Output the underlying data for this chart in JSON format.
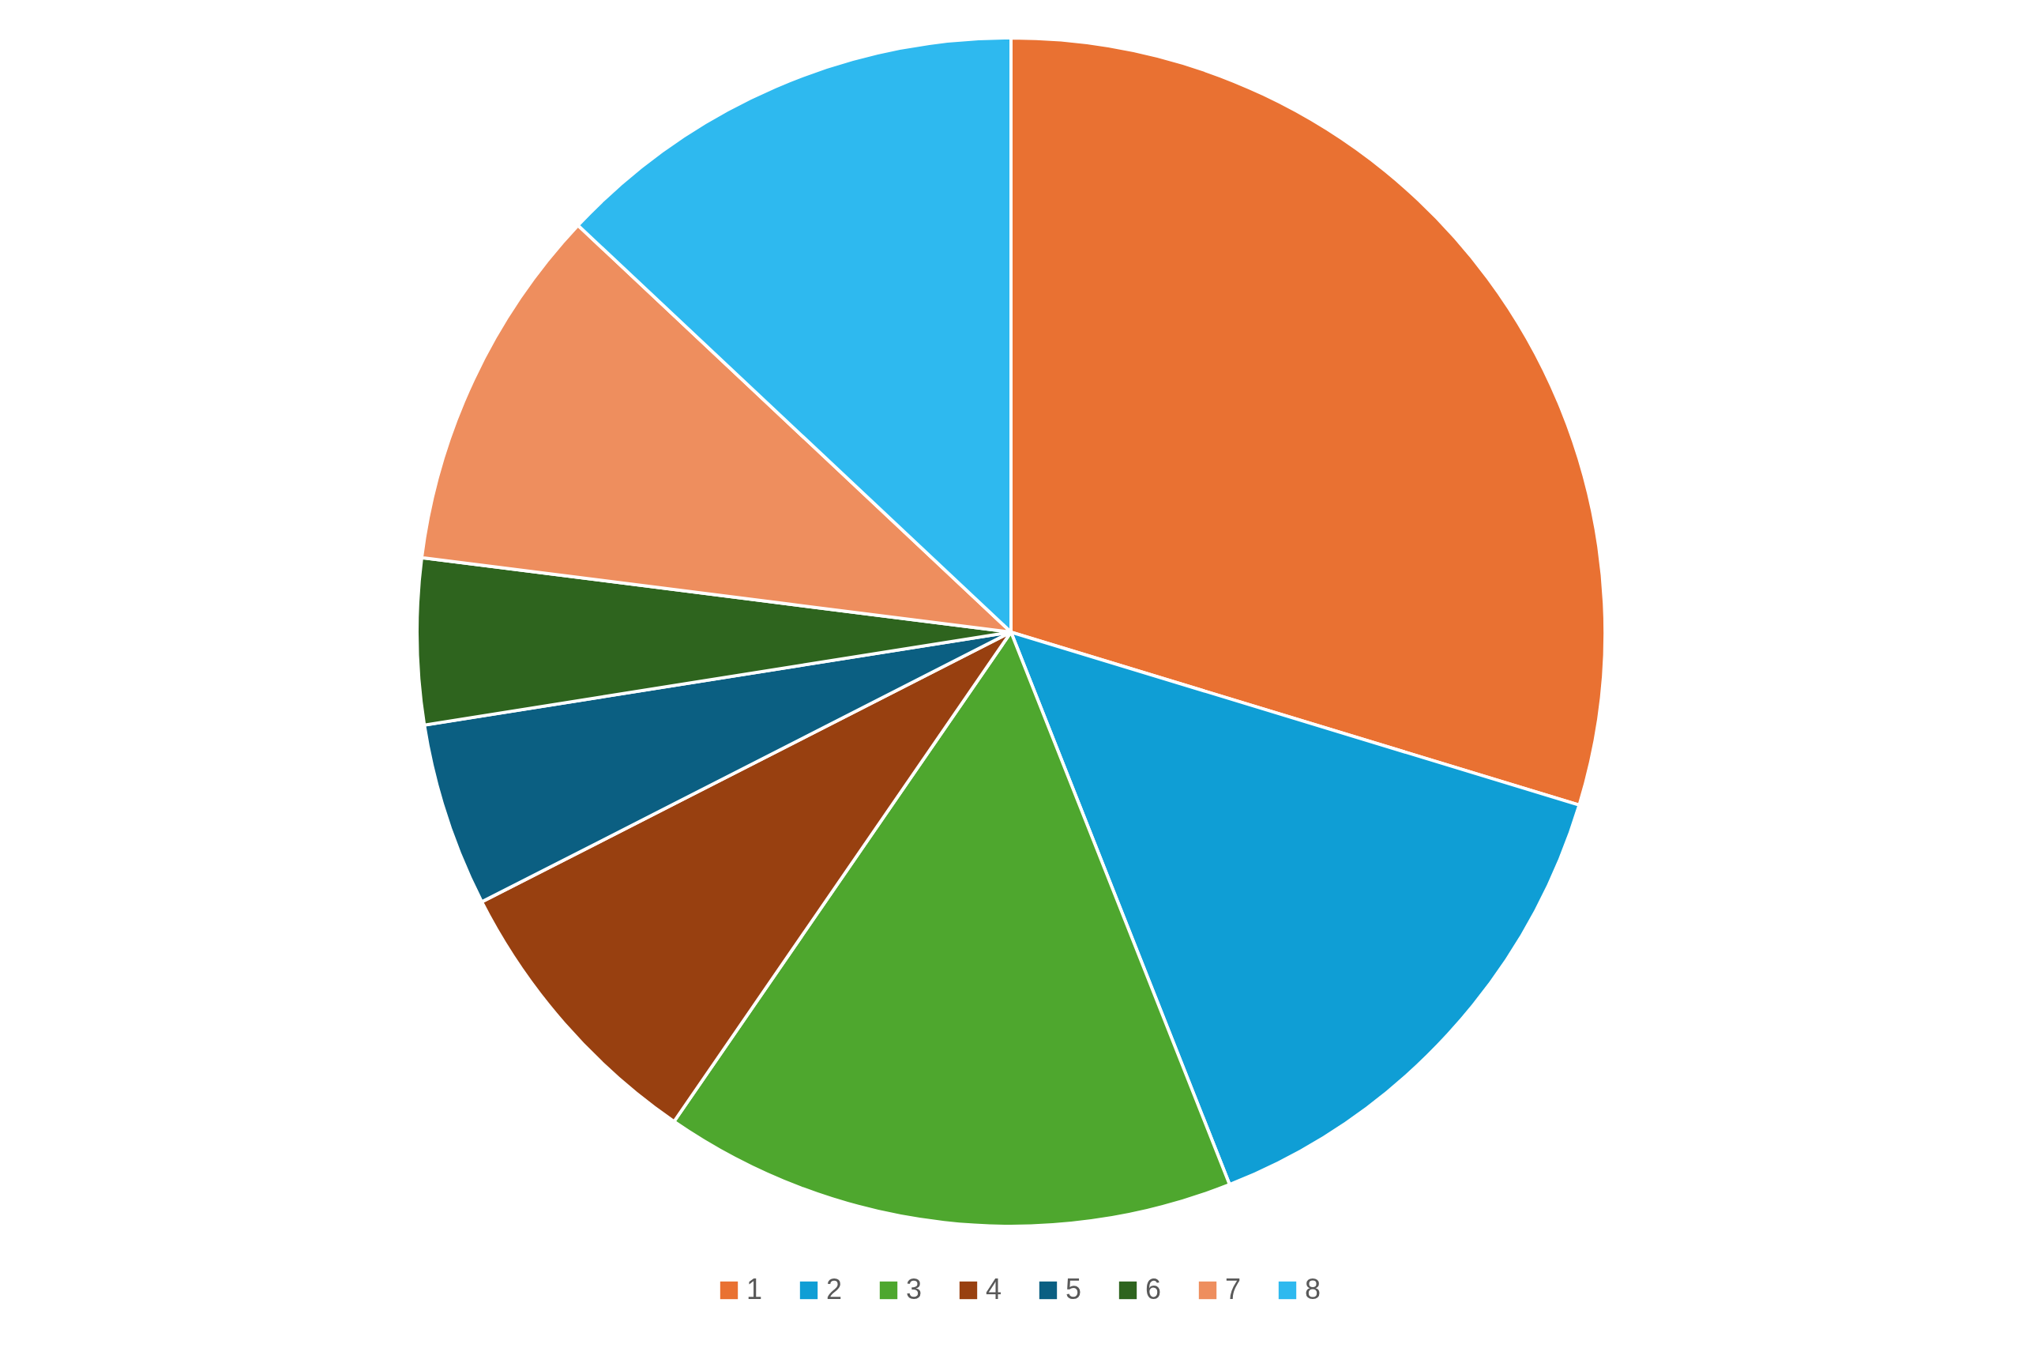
{
  "chart_data": {
    "type": "pie",
    "categories": [
      "1",
      "2",
      "3",
      "4",
      "5",
      "6",
      "7",
      "8"
    ],
    "values": [
      29.7,
      14.3,
      15.6,
      7.9,
      5.0,
      4.5,
      10.0,
      13.0
    ],
    "colors": [
      "#e97132",
      "#0f9ed5",
      "#4ea72e",
      "#984010",
      "#0b5f82",
      "#2e641e",
      "#ee8e5e",
      "#2eb9ef"
    ],
    "legend": "bottom"
  }
}
